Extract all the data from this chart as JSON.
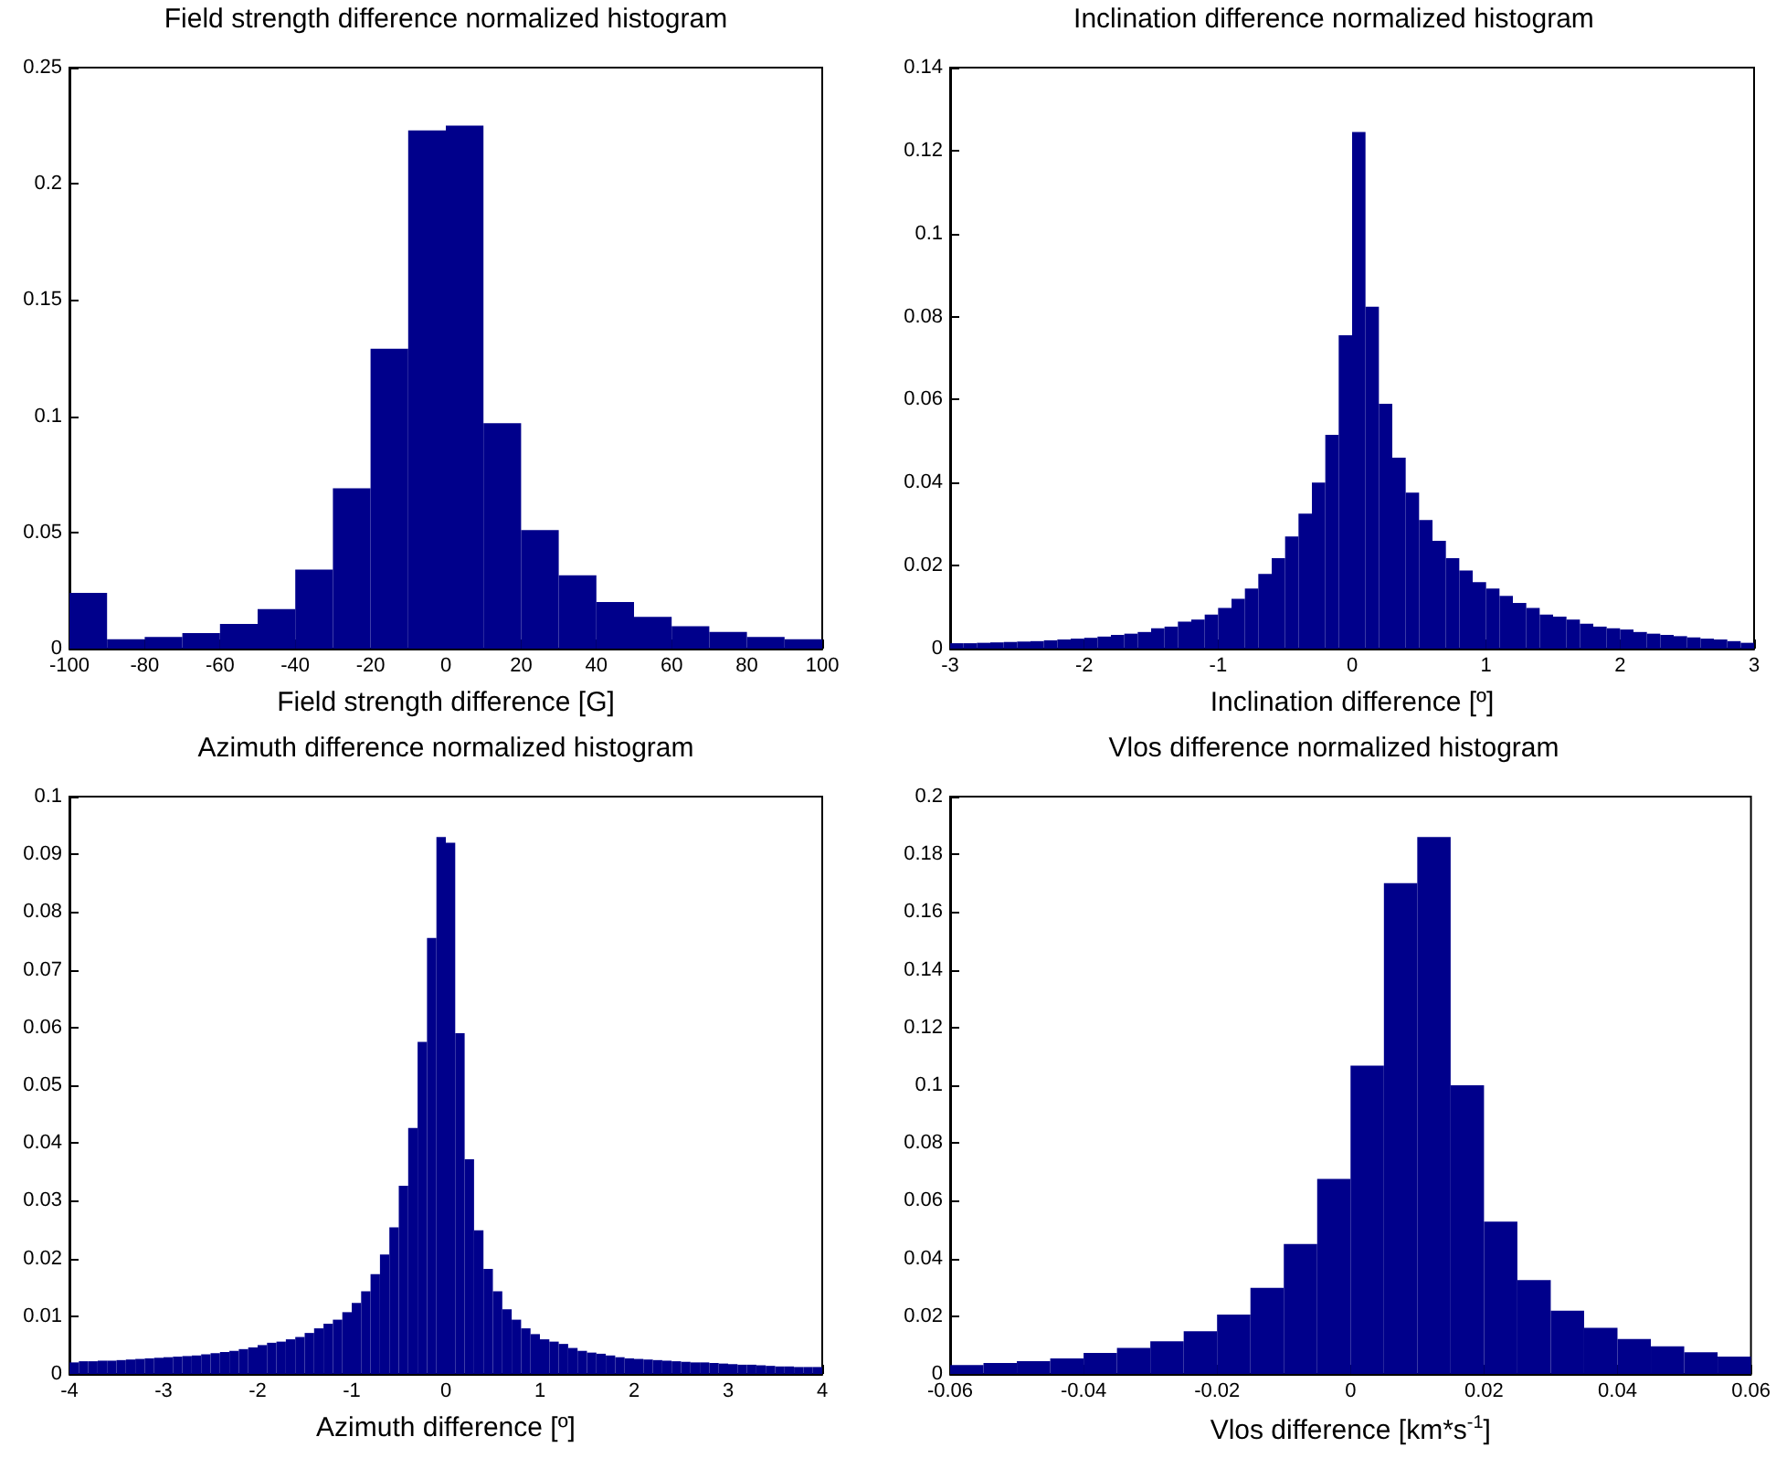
{
  "chart_data": [
    {
      "type": "histogram",
      "title": "Field strength difference normalized histogram",
      "xlabel": "Field strength difference [G]",
      "color": "#00008b",
      "bins": [
        -100,
        -90,
        -80,
        -70,
        -60,
        -50,
        -40,
        -30,
        -20,
        -10,
        0,
        10,
        20,
        30,
        40,
        50,
        60,
        70,
        80,
        90,
        100
      ],
      "values": [
        0.024,
        0.004,
        0.005,
        0.0067,
        0.0106,
        0.017,
        0.034,
        0.069,
        0.129,
        0.223,
        0.225,
        0.097,
        0.051,
        0.0315,
        0.02,
        0.0137,
        0.0096,
        0.0072,
        0.005,
        0.004
      ],
      "xlim": [
        -100,
        100
      ],
      "xticks": [
        -100,
        -80,
        -60,
        -40,
        -20,
        0,
        20,
        40,
        60,
        80,
        100
      ],
      "ylim": [
        0,
        0.25
      ],
      "yticks": [
        0,
        0.05,
        0.1,
        0.15,
        0.2,
        0.25
      ]
    },
    {
      "type": "histogram",
      "title": "Inclination difference normalized histogram",
      "xlabel": "Inclination difference [º]",
      "color": "#00008b",
      "bins": [
        -3,
        -2.9,
        -2.8,
        -2.7,
        -2.6,
        -2.5,
        -2.4,
        -2.3,
        -2.2,
        -2.1,
        -2,
        -1.9,
        -1.8,
        -1.7,
        -1.6,
        -1.5,
        -1.4,
        -1.3,
        -1.2,
        -1.1,
        -1,
        -0.9,
        -0.8,
        -0.7,
        -0.6,
        -0.5,
        -0.4,
        -0.3,
        -0.2,
        -0.1,
        0,
        0.1,
        0.2,
        0.3,
        0.4,
        0.5,
        0.6,
        0.7,
        0.8,
        0.9,
        1,
        1.1,
        1.2,
        1.3,
        1.4,
        1.5,
        1.6,
        1.7,
        1.8,
        1.9,
        2,
        2.1,
        2.2,
        2.3,
        2.4,
        2.5,
        2.6,
        2.7,
        2.8,
        2.9,
        3
      ],
      "values": [
        0.0013,
        0.0013,
        0.0014,
        0.0015,
        0.0016,
        0.0017,
        0.0018,
        0.002,
        0.0022,
        0.0024,
        0.0026,
        0.0029,
        0.0033,
        0.0036,
        0.004,
        0.0049,
        0.0053,
        0.0065,
        0.007,
        0.0082,
        0.0098,
        0.012,
        0.0145,
        0.018,
        0.0218,
        0.027,
        0.0325,
        0.04,
        0.0515,
        0.0755,
        0.1245,
        0.0824,
        0.059,
        0.046,
        0.0376,
        0.031,
        0.026,
        0.0218,
        0.0188,
        0.016,
        0.0145,
        0.0127,
        0.011,
        0.0098,
        0.0082,
        0.0077,
        0.007,
        0.006,
        0.0053,
        0.0049,
        0.0046,
        0.004,
        0.0036,
        0.0033,
        0.003,
        0.0027,
        0.0024,
        0.0022,
        0.0018,
        0.0014
      ],
      "xlim": [
        -3,
        3
      ],
      "xticks": [
        -3,
        -2,
        -1,
        0,
        1,
        2,
        3
      ],
      "ylim": [
        0,
        0.14
      ],
      "yticks": [
        0,
        0.02,
        0.04,
        0.06,
        0.08,
        0.1,
        0.12,
        0.14
      ]
    },
    {
      "type": "histogram",
      "title": "Azimuth difference normalized histogram",
      "xlabel": "Azimuth difference [º]",
      "color": "#00008b",
      "bins": [
        -4,
        -3.9,
        -3.8,
        -3.7,
        -3.6,
        -3.5,
        -3.4,
        -3.3,
        -3.2,
        -3.1,
        -3,
        -2.9,
        -2.8,
        -2.7,
        -2.6,
        -2.5,
        -2.4,
        -2.3,
        -2.2,
        -2.1,
        -2,
        -1.9,
        -1.8,
        -1.7,
        -1.6,
        -1.5,
        -1.4,
        -1.3,
        -1.2,
        -1.1,
        -1,
        -0.9,
        -0.8,
        -0.7,
        -0.6,
        -0.5,
        -0.4,
        -0.3,
        -0.2,
        -0.1,
        0,
        0.1,
        0.2,
        0.3,
        0.4,
        0.5,
        0.6,
        0.7,
        0.8,
        0.9,
        1,
        1.1,
        1.2,
        1.3,
        1.4,
        1.5,
        1.6,
        1.7,
        1.8,
        1.9,
        2,
        2.1,
        2.2,
        2.3,
        2.4,
        2.5,
        2.6,
        2.7,
        2.8,
        2.9,
        3,
        3.1,
        3.2,
        3.3,
        3.4,
        3.5,
        3.6,
        3.7,
        3.8,
        3.9,
        4
      ],
      "values": [
        0.002,
        0.0022,
        0.0022,
        0.0023,
        0.0023,
        0.0024,
        0.0025,
        0.0026,
        0.0027,
        0.0028,
        0.0029,
        0.003,
        0.0031,
        0.0032,
        0.0034,
        0.0036,
        0.0038,
        0.004,
        0.0043,
        0.0046,
        0.005,
        0.0054,
        0.0056,
        0.006,
        0.0064,
        0.0071,
        0.0079,
        0.0087,
        0.0094,
        0.0107,
        0.0123,
        0.0143,
        0.0173,
        0.0207,
        0.0254,
        0.0326,
        0.0426,
        0.0575,
        0.0755,
        0.093,
        0.092,
        0.059,
        0.0372,
        0.0249,
        0.0182,
        0.0143,
        0.0112,
        0.0094,
        0.0079,
        0.0069,
        0.006,
        0.0056,
        0.0052,
        0.0045,
        0.004,
        0.0037,
        0.0035,
        0.0032,
        0.0029,
        0.0027,
        0.0026,
        0.0025,
        0.0024,
        0.0023,
        0.0022,
        0.0021,
        0.002,
        0.002,
        0.0019,
        0.0018,
        0.0017,
        0.0016,
        0.0016,
        0.0015,
        0.0014,
        0.0013,
        0.0013,
        0.0012,
        0.0012,
        0.0012
      ],
      "xlim": [
        -4,
        4
      ],
      "xticks": [
        -4,
        -3,
        -2,
        -1,
        0,
        1,
        2,
        3,
        4
      ],
      "ylim": [
        0,
        0.1
      ],
      "yticks": [
        0,
        0.01,
        0.02,
        0.03,
        0.04,
        0.05,
        0.06,
        0.07,
        0.08,
        0.09,
        0.1
      ]
    },
    {
      "type": "histogram",
      "title": "Vlos difference normalized histogram",
      "xlabel": "Vlos difference [km*s$^{-1}$]",
      "color": "#00008b",
      "bins": [
        -0.06,
        -0.055,
        -0.05,
        -0.045,
        -0.04,
        -0.035,
        -0.03,
        -0.025,
        -0.02,
        -0.015,
        -0.01,
        -0.005,
        0,
        0.005,
        0.01,
        0.015,
        0.02,
        0.025,
        0.03,
        0.035,
        0.04,
        0.045,
        0.05,
        0.055,
        0.06
      ],
      "values": [
        0.0031,
        0.0038,
        0.0044,
        0.0054,
        0.0073,
        0.009,
        0.0113,
        0.0148,
        0.0206,
        0.0298,
        0.045,
        0.0676,
        0.1068,
        0.17,
        0.186,
        0.1,
        0.0528,
        0.0325,
        0.0219,
        0.016,
        0.0121,
        0.0096,
        0.0075,
        0.006
      ],
      "xlim": [
        -0.06,
        0.06
      ],
      "xticks": [
        -0.06,
        -0.04,
        -0.02,
        0,
        0.02,
        0.04,
        0.06
      ],
      "ylim": [
        0,
        0.2
      ],
      "yticks": [
        0,
        0.02,
        0.04,
        0.06,
        0.08,
        0.1,
        0.12,
        0.14,
        0.16,
        0.18,
        0.2
      ]
    }
  ]
}
